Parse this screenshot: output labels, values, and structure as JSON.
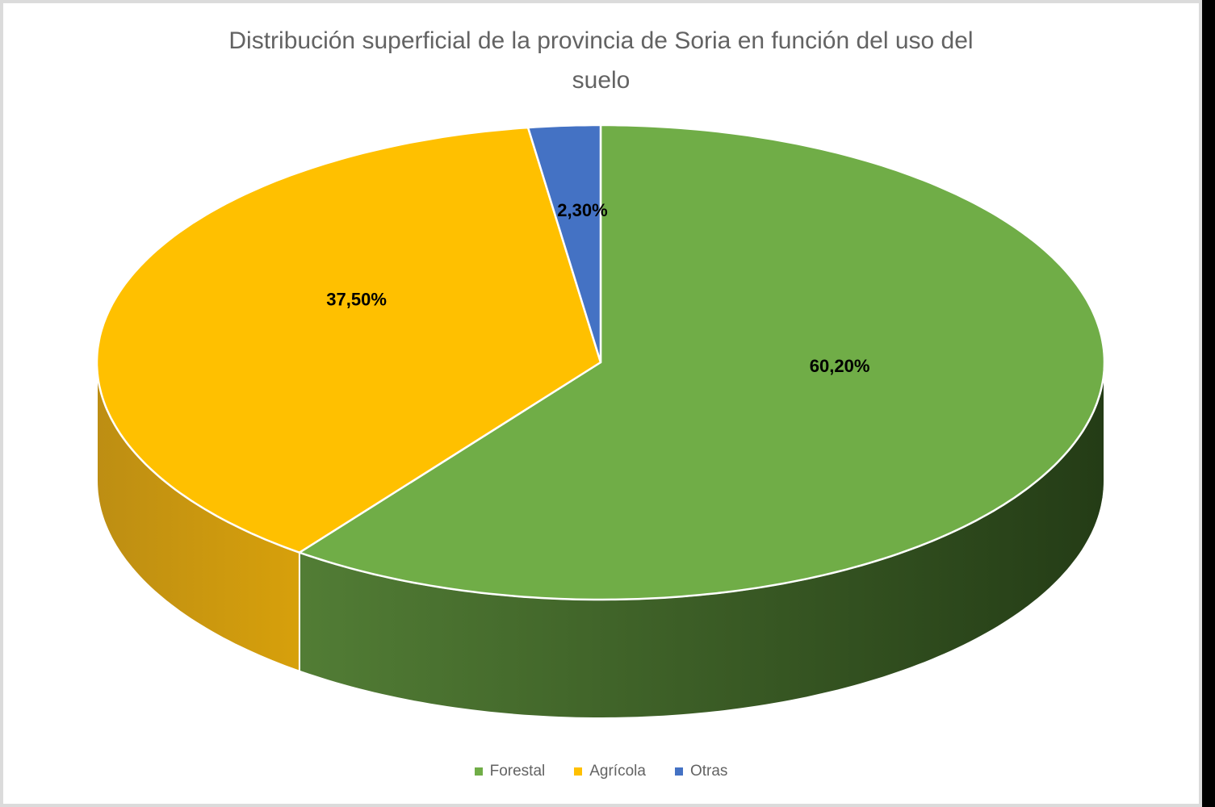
{
  "frame": {
    "background": "#FFFFFF",
    "border_color": "#DBDBDB",
    "right_strip_color": "#000000"
  },
  "title": {
    "text": "Distribución superficial de la provincia de Soria en función del uso del suelo",
    "line1": "Distribución superficial de la provincia de Soria en función del uso del",
    "line2": "suelo",
    "color": "#636363"
  },
  "chart_data": {
    "type": "pie",
    "style": "3d-pie",
    "title": "Distribución superficial de la provincia de Soria en función del uso del suelo",
    "categories": [
      "Forestal",
      "Agrícola",
      "Otras"
    ],
    "values": [
      60.2,
      37.5,
      2.3
    ],
    "unit": "%",
    "labels": [
      "60,20%",
      "37,50%",
      "2,30%"
    ],
    "colors": [
      "#70AD47",
      "#FFC000",
      "#4472C4"
    ],
    "wall_gradients": [
      [
        "#527D35",
        "#243C16"
      ],
      [
        "#BD8E13",
        "#D7A00B"
      ],
      [
        "#2F5597",
        "#2F5597"
      ]
    ],
    "start_angle_deg": 0,
    "direction": "clockwise",
    "label_color": "#000000",
    "seam_color": "#FFFFFF",
    "legend_position": "bottom",
    "legend_text_color": "#636363",
    "background": "#FFFFFF"
  }
}
